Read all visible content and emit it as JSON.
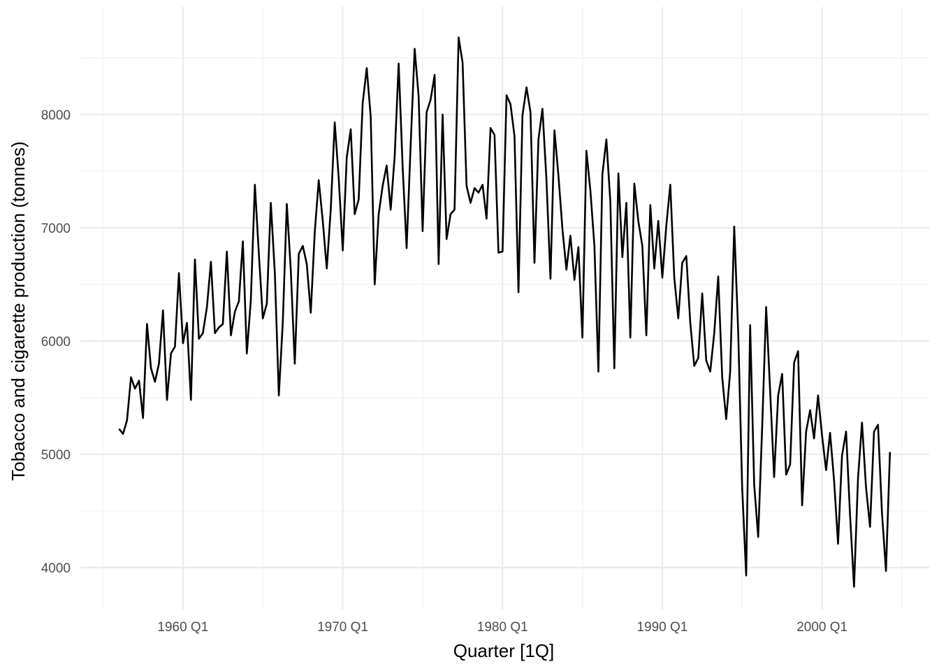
{
  "chart_data": {
    "type": "line",
    "title": "",
    "xlabel": "Quarter [1Q]",
    "ylabel": "Tobacco and cigarette production (tonnes)",
    "xlim": [
      "1955 Q1",
      "2005 Q1"
    ],
    "ylim": [
      3650,
      8800
    ],
    "grid": true,
    "x_ticks": [
      "1960 Q1",
      "1970 Q1",
      "1980 Q1",
      "1990 Q1",
      "2000 Q1"
    ],
    "y_ticks": [
      4000,
      5000,
      6000,
      7000,
      8000
    ],
    "start_quarter": "1956 Q1",
    "end_quarter": "2004 Q2",
    "series": [
      {
        "values": [
          5225,
          5180,
          5300,
          5680,
          5580,
          5650,
          5320,
          6150,
          5760,
          5640,
          5800,
          6270,
          5480,
          5890,
          5950,
          6600,
          5980,
          6160,
          5480,
          6720,
          6020,
          6070,
          6300,
          6700,
          6070,
          6120,
          6150,
          6790,
          6050,
          6260,
          6350,
          6880,
          5890,
          6360,
          7380,
          6770,
          6200,
          6330,
          7220,
          6600,
          5520,
          6170,
          7210,
          6630,
          5800,
          6770,
          6840,
          6680,
          6250,
          6960,
          7420,
          7060,
          6640,
          7160,
          7930,
          7440,
          6800,
          7620,
          7870,
          7120,
          7250,
          8100,
          8410,
          7980,
          6500,
          7120,
          7370,
          7550,
          7160,
          7630,
          8450,
          7540,
          6820,
          7720,
          8580,
          8160,
          6970,
          8020,
          8130,
          8350,
          6680,
          8000,
          6900,
          7120,
          7160,
          8680,
          8460,
          7370,
          7220,
          7350,
          7310,
          7380,
          7080,
          7880,
          7820,
          6780,
          6790,
          8170,
          8090,
          7810,
          6430,
          7990,
          8240,
          8020,
          6690,
          7780,
          8050,
          7430,
          6550,
          7860,
          7460,
          6990,
          6630,
          6930,
          6540,
          6830,
          6030,
          7680,
          7330,
          6840,
          5730,
          7470,
          7780,
          7230,
          5760,
          7480,
          6740,
          7220,
          6030,
          7390,
          7060,
          6840,
          6050,
          7200,
          6640,
          7060,
          6560,
          7020,
          7380,
          6560,
          6200,
          6690,
          6750,
          6160,
          5780,
          5850,
          6420,
          5830,
          5730,
          6070,
          6570,
          5680,
          5310,
          5730,
          7010,
          6080,
          4700,
          3930,
          6140,
          4730,
          4270,
          5240,
          6300,
          5560,
          4800,
          5520,
          5710,
          4820,
          4910,
          5810,
          5910,
          4550,
          5200,
          5390,
          5140,
          5520,
          5160,
          4860,
          5190,
          4770,
          4210,
          4990,
          5200,
          4460,
          3830,
          4790,
          5280,
          4710,
          4360,
          5200,
          5260,
          4480,
          3970,
          5020
        ]
      }
    ]
  }
}
